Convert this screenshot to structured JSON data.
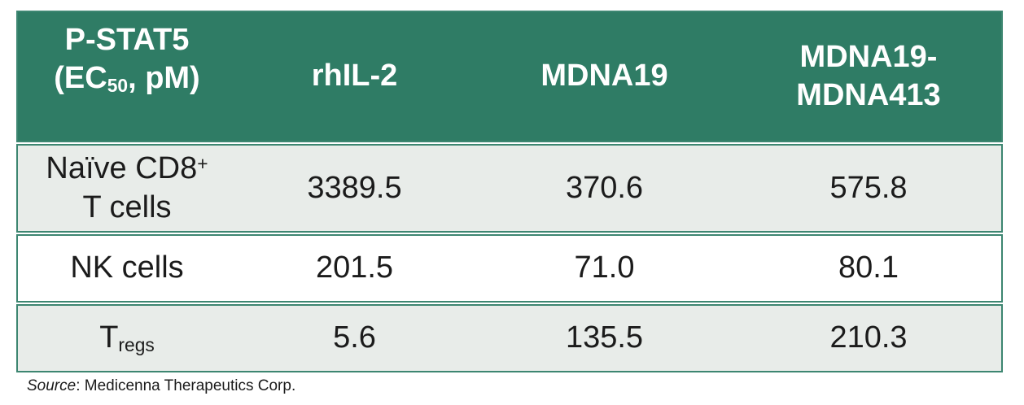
{
  "colors": {
    "header_bg": "#2F7C65",
    "row_border": "#3D8671",
    "row_shaded_bg": "#E8ECE9",
    "header_text": "#FFFFFF",
    "body_text": "#1B1B1B"
  },
  "table": {
    "header": {
      "col1_line1": "P-STAT5",
      "col1_line2_pre": "(EC",
      "col1_line2_sub": "50",
      "col1_line2_post": ", pM)",
      "col2": "rhIL-2",
      "col3": "MDNA19",
      "col4_line1": "MDNA19-",
      "col4_line2": "MDNA413"
    },
    "rows": [
      {
        "label_line1_main": "Naïve CD8",
        "label_line1_sup": "+",
        "label_line2": "T cells",
        "values": [
          "3389.5",
          "370.6",
          "575.8"
        ]
      },
      {
        "label": "NK cells",
        "values": [
          "201.5",
          "71.0",
          "80.1"
        ]
      },
      {
        "label_main": "T",
        "label_sub": "regs",
        "values": [
          "5.6",
          "135.5",
          "210.3"
        ]
      }
    ]
  },
  "source": {
    "prefix": "Source",
    "rest": ": Medicenna Therapeutics Corp."
  },
  "chart_data": {
    "type": "table",
    "title": "P-STAT5 (EC50, pM)",
    "columns": [
      "P-STAT5 (EC50, pM)",
      "rhIL-2",
      "MDNA19",
      "MDNA19-MDNA413"
    ],
    "row_labels": [
      "Naïve CD8+ T cells",
      "NK cells",
      "Tregs"
    ],
    "series": [
      {
        "name": "rhIL-2",
        "values": [
          3389.5,
          201.5,
          5.6
        ]
      },
      {
        "name": "MDNA19",
        "values": [
          370.6,
          71.0,
          135.5
        ]
      },
      {
        "name": "MDNA19-MDNA413",
        "values": [
          575.8,
          80.1,
          210.3
        ]
      }
    ],
    "source_note": "Source: Medicenna Therapeutics Corp."
  }
}
